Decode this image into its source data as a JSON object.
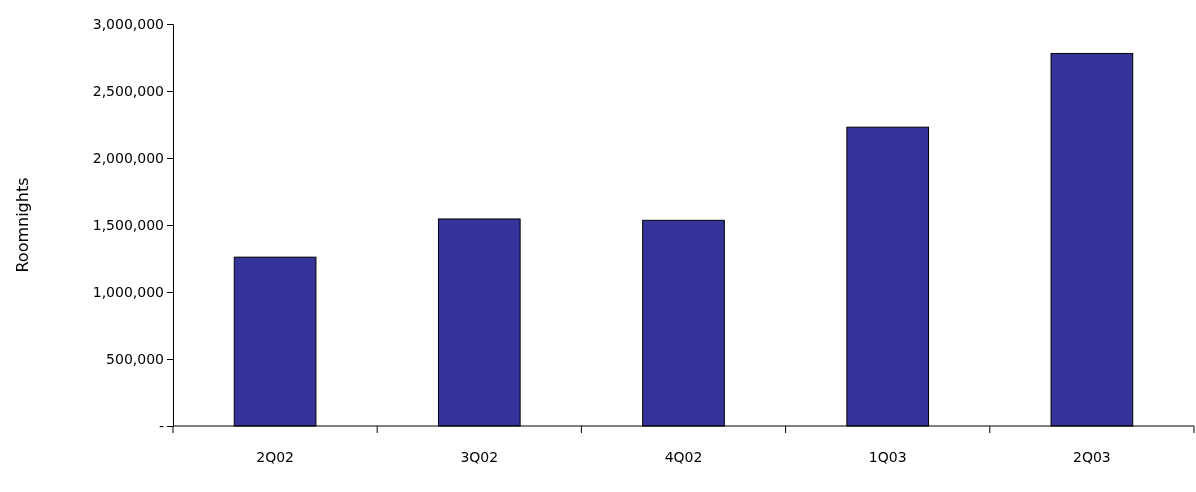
{
  "chart_data": {
    "type": "bar",
    "ylabel": "Roomnights",
    "categories": [
      "2Q02",
      "3Q02",
      "4Q02",
      "1Q03",
      "2Q03"
    ],
    "values": [
      1260000,
      1545000,
      1535000,
      2230000,
      2780000
    ],
    "color": "#333399",
    "ylim": [
      0,
      3000000
    ],
    "yticks": [
      {
        "value": 0,
        "label": "-"
      },
      {
        "value": 500000,
        "label": "500,000"
      },
      {
        "value": 1000000,
        "label": "1,000,000"
      },
      {
        "value": 1500000,
        "label": "1,500,000"
      },
      {
        "value": 2000000,
        "label": "2,000,000"
      },
      {
        "value": 2500000,
        "label": "2,500,000"
      },
      {
        "value": 3000000,
        "label": "3,000,000"
      }
    ],
    "grid": false
  }
}
